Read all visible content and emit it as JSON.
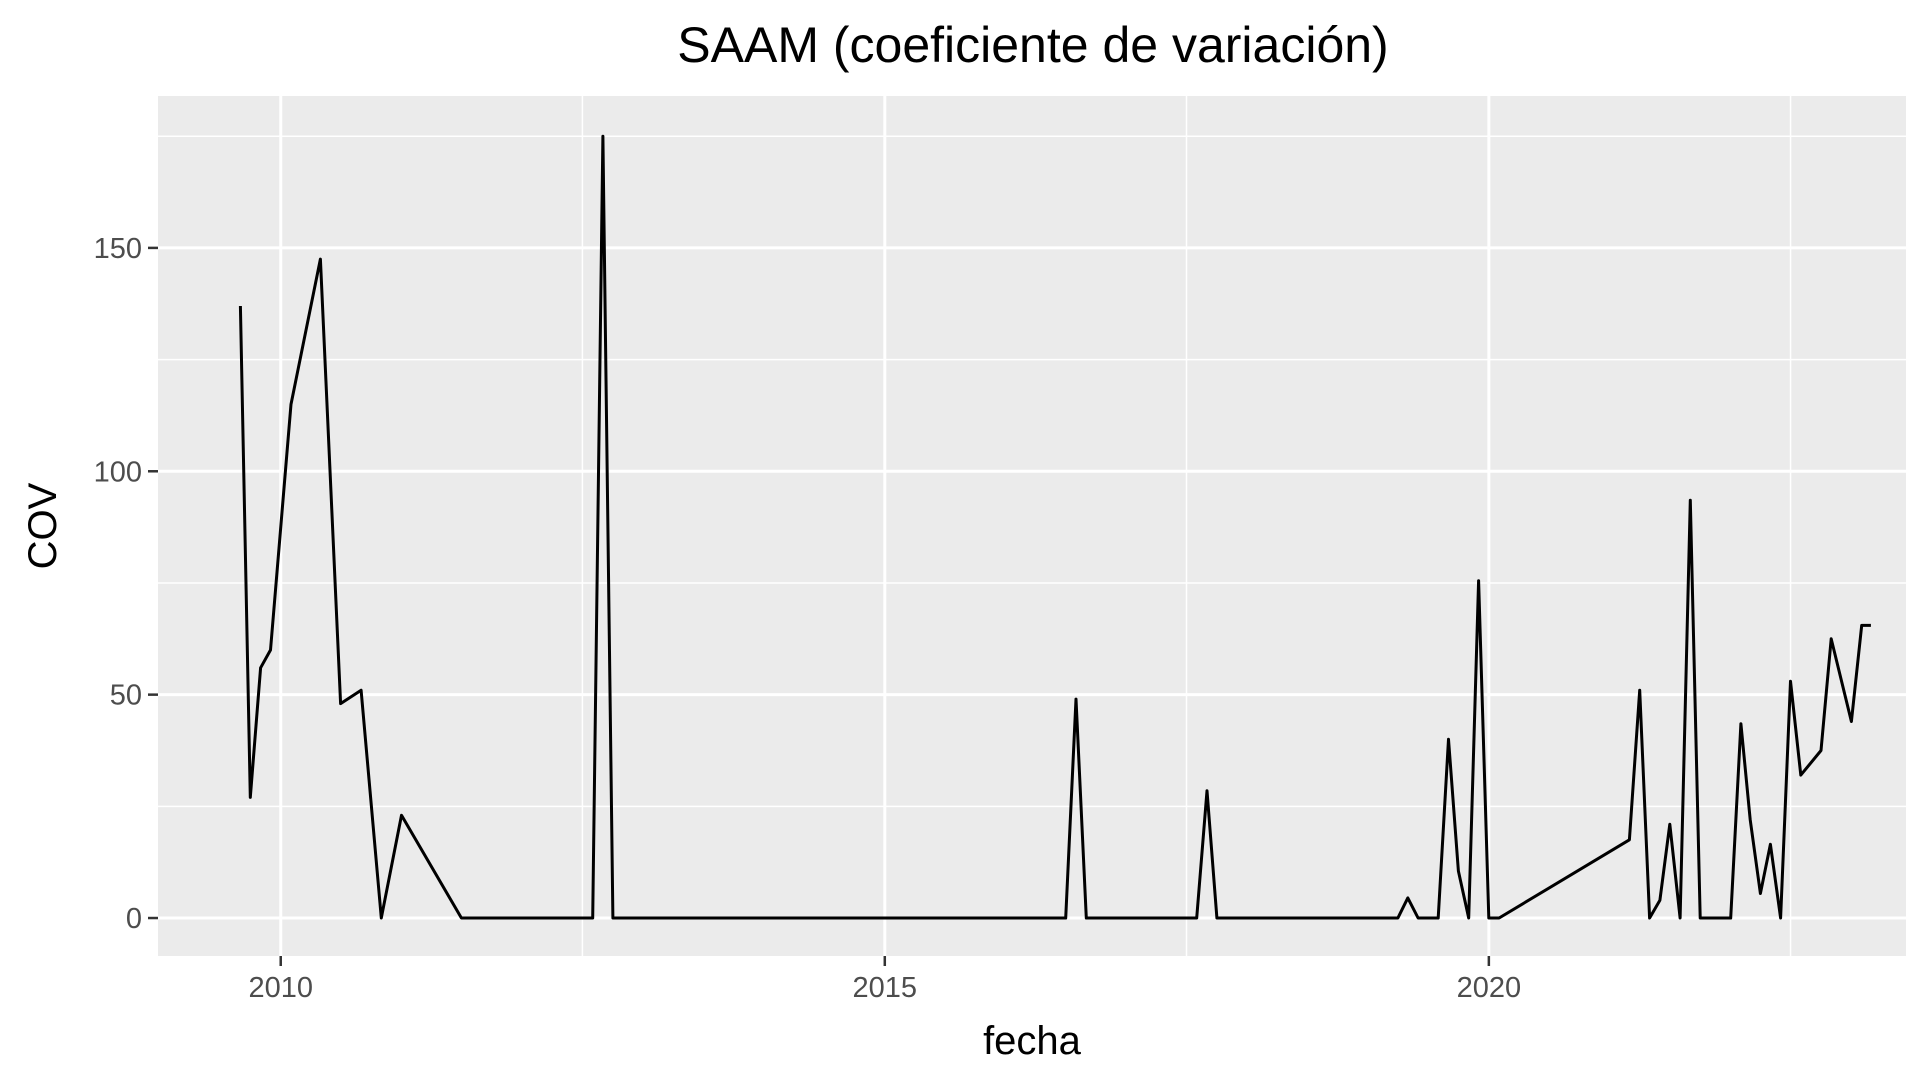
{
  "chart_data": {
    "type": "line",
    "title": "SAAM (coeficiente de variación)",
    "xlabel": "fecha",
    "ylabel": "COV",
    "x_kind": "date",
    "xlim": [
      "2008-12-26",
      "2023-06-15"
    ],
    "ylim": [
      -8.5,
      184
    ],
    "x_ticks": [
      {
        "value": "2010-01-01",
        "label": "2010"
      },
      {
        "value": "2015-01-01",
        "label": "2015"
      },
      {
        "value": "2020-01-01",
        "label": "2020"
      }
    ],
    "x_minor_ticks": [
      "2012-07-01",
      "2017-07-01",
      "2022-07-01"
    ],
    "y_ticks": [
      {
        "value": 0,
        "label": "0"
      },
      {
        "value": 50,
        "label": "50"
      },
      {
        "value": 100,
        "label": "100"
      },
      {
        "value": 150,
        "label": "150"
      }
    ],
    "y_minor_ticks": [
      25,
      75,
      125,
      175
    ],
    "grid": true,
    "panel_background": "#ebebeb",
    "line_color": "#000000",
    "series": [
      {
        "x": [
          "2009-09-01",
          "2009-10-01",
          "2009-11-01",
          "2009-12-01",
          "2010-02-01",
          "2010-05-01",
          "2010-07-01",
          "2010-09-01",
          "2010-11-01",
          "2011-01-01",
          "2011-07-01",
          "2012-08-01",
          "2012-09-01",
          "2012-10-01",
          "2016-07-01",
          "2016-08-01",
          "2016-09-01",
          "2017-08-01",
          "2017-09-01",
          "2017-10-01",
          "2019-04-01",
          "2019-05-01",
          "2019-06-01",
          "2019-08-01",
          "2019-09-01",
          "2019-10-01",
          "2019-11-01",
          "2019-12-01",
          "2020-01-01",
          "2020-02-01",
          "2021-03-01",
          "2021-04-01",
          "2021-05-01",
          "2021-06-01",
          "2021-07-01",
          "2021-08-01",
          "2021-09-01",
          "2021-10-01",
          "2021-11-01",
          "2022-01-01",
          "2022-02-01",
          "2022-03-01",
          "2022-04-01",
          "2022-05-01",
          "2022-06-01",
          "2022-07-01",
          "2022-08-01",
          "2022-10-01",
          "2022-11-01",
          "2023-01-01",
          "2023-02-01",
          "2023-03-01"
        ],
        "y": [
          137,
          27,
          56,
          60,
          115,
          147.5,
          48,
          51,
          0,
          23,
          0,
          0,
          175,
          0,
          0,
          49,
          0,
          0,
          28.5,
          0,
          0,
          4.5,
          0,
          0,
          40,
          10.5,
          0,
          75.5,
          0,
          0,
          17.5,
          51,
          0,
          4,
          21,
          0,
          93.5,
          0,
          0,
          0,
          43.5,
          22,
          5.5,
          16.5,
          0,
          53,
          32,
          37.5,
          62.5,
          44,
          65.5,
          65.5
        ]
      }
    ]
  }
}
